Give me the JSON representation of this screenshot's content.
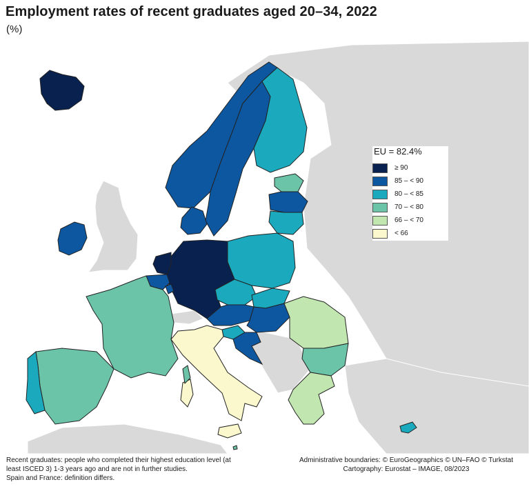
{
  "title": "Employment rates of recent graduates aged 20–34, 2022",
  "subtitle": "(%)",
  "legend": {
    "title": "EU = 82.4%",
    "classes": [
      {
        "label": "≥ 90",
        "color": "#08214e"
      },
      {
        "label": "85 – < 90",
        "color": "#0d57a0"
      },
      {
        "label": "80 – < 85",
        "color": "#1ba9bd"
      },
      {
        "label": "70 – < 80",
        "color": "#6bc3a8"
      },
      {
        "label": "66 – < 70",
        "color": "#c2e6b0"
      },
      {
        "label": "< 66",
        "color": "#fbf8cd"
      }
    ]
  },
  "colors": {
    "sea": "#ffffff",
    "non_eu": "#d9d9d9",
    "border": "#222222"
  },
  "footnotes": {
    "definition_line1": "Recent graduates: people who completed their highest education level (at",
    "definition_line2": "least ISCED 3) 1-3 years ago and are not in further studies.",
    "note": "Spain and France: definition differs.",
    "boundaries": "Administrative boundaries: © EuroGeographics © UN–FAO © Turkstat",
    "cartography": "Cartography: Eurostat – IMAGE, 08/2023"
  }
}
